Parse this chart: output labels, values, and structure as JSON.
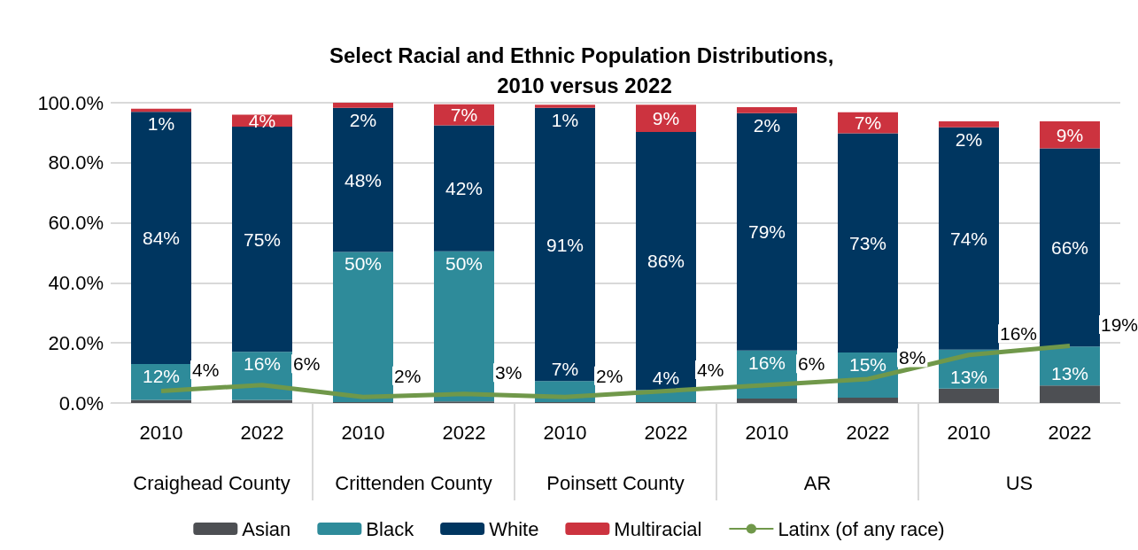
{
  "chart_data": {
    "type": "bar",
    "title": "Select Racial and Ethnic Population Distributions, 2010 versus 2022",
    "categories": [
      "2010",
      "2022",
      "2010",
      "2022",
      "2010",
      "2022",
      "2010",
      "2022",
      "2010",
      "2022"
    ],
    "annotations": [
      "Craighead County",
      "Crittenden County",
      "Poinsett County",
      "AR",
      "US"
    ],
    "stacked": true,
    "series": [
      {
        "name": "Asian",
        "color": "#4d4f53",
        "values": [
          1,
          1,
          0.3,
          0.5,
          0.3,
          0.3,
          1.5,
          1.8,
          4.8,
          5.8
        ]
      },
      {
        "name": "Black",
        "color": "#2e8b9a",
        "values": [
          12,
          16,
          50,
          50,
          7,
          4,
          16,
          15,
          13,
          13
        ],
        "value_labels": [
          "12%",
          "16%",
          "50%",
          "50%",
          "7%",
          "4%",
          "16%",
          "15%",
          "13%",
          "13%"
        ]
      },
      {
        "name": "White",
        "color": "#003660",
        "values": [
          84,
          75,
          48,
          42,
          91,
          86,
          79,
          73,
          74,
          66
        ],
        "value_labels": [
          "84%",
          "75%",
          "48%",
          "42%",
          "91%",
          "86%",
          "79%",
          "73%",
          "74%",
          "66%"
        ]
      },
      {
        "name": "Multiracial",
        "color": "#cc333f",
        "values": [
          1,
          4,
          2,
          7,
          1,
          9,
          2,
          7,
          2,
          9
        ],
        "value_labels": [
          "1%",
          "4%",
          "2%",
          "7%",
          "1%",
          "9%",
          "2%",
          "7%",
          "2%",
          "9%"
        ]
      },
      {
        "name": "Latinx (of any race)",
        "type": "line",
        "color": "#70984a",
        "values": [
          4,
          6,
          2,
          3,
          2,
          4,
          6,
          8,
          16,
          19
        ],
        "value_labels": [
          "4%",
          "6%",
          "2%",
          "3%",
          "2%",
          "4%",
          "6%",
          "8%",
          "16%",
          "19%"
        ]
      }
    ],
    "ylim": [
      0,
      100
    ],
    "yticks": [
      {
        "value": 0,
        "label": "0.0%"
      },
      {
        "value": 20,
        "label": "20.0%"
      },
      {
        "value": 40,
        "label": "40.0%"
      },
      {
        "value": 60,
        "label": "60.0%"
      },
      {
        "value": 80,
        "label": "80.0%"
      },
      {
        "value": 100,
        "label": "100.0%"
      }
    ],
    "grid": "y",
    "legend": "bottom",
    "marker": "none"
  }
}
